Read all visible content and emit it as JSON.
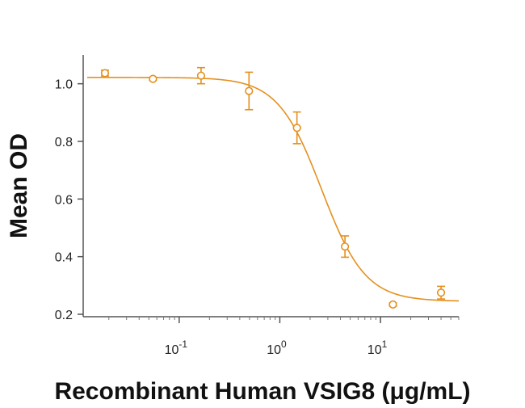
{
  "chart_data": {
    "type": "scatter",
    "title": "",
    "xlabel": "Recombinant Human VSIG8 (μg/mL)",
    "ylabel": "Mean OD",
    "x_scale": "log",
    "xlim": [
      0.0122,
      60
    ],
    "ylim": [
      0.2,
      1.1
    ],
    "x_ticks": [
      {
        "value": 0.1,
        "base": "10",
        "exp": "-1"
      },
      {
        "value": 1,
        "base": "10",
        "exp": "0"
      },
      {
        "value": 10,
        "base": "10",
        "exp": "1"
      }
    ],
    "y_ticks": [
      {
        "value": 0.2,
        "label": "0.2"
      },
      {
        "value": 0.4,
        "label": "0.4"
      },
      {
        "value": 0.6,
        "label": "0.6"
      },
      {
        "value": 0.8,
        "label": "0.8"
      },
      {
        "value": 1.0,
        "label": "1.0"
      }
    ],
    "grid": false,
    "legend": "none",
    "color": "#e5901e",
    "series": [
      {
        "x": [
          0.0183,
          0.0549,
          0.165,
          0.494,
          1.48,
          4.44,
          13.3,
          40.0
        ],
        "y": [
          1.037,
          1.017,
          1.028,
          0.975,
          0.847,
          0.435,
          0.234,
          0.275
        ],
        "error": [
          0.01,
          0.005,
          0.028,
          0.065,
          0.055,
          0.037,
          0.005,
          0.022
        ]
      }
    ],
    "fit": {
      "model": "4PL",
      "top": 1.022,
      "bottom": 0.245,
      "ec50": 2.6,
      "hill": 2.0
    }
  }
}
